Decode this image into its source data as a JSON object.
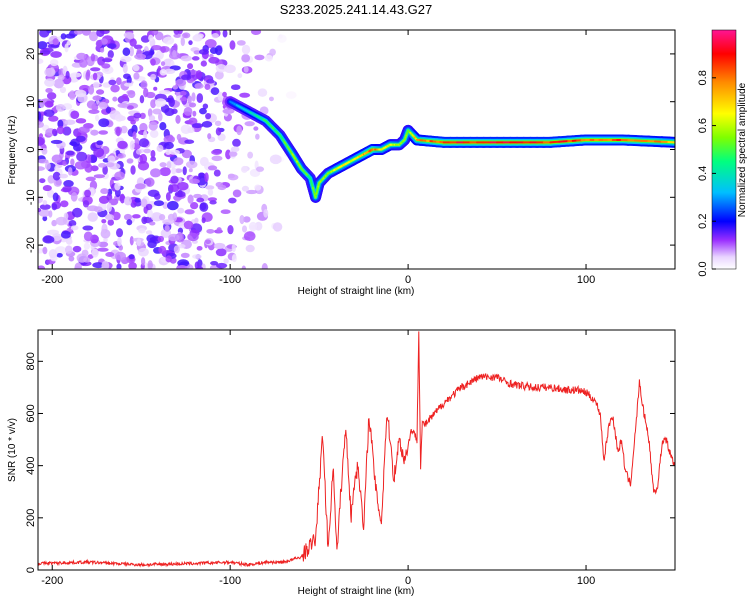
{
  "title": "S233.2025.241.14.43.G27",
  "chart_data": [
    {
      "type": "heatmap",
      "xlabel": "Height of straight line (km)",
      "ylabel": "Frequency (Hz)",
      "xlim": [
        -208,
        150
      ],
      "ylim": [
        -25,
        25
      ],
      "xticks": [
        -200,
        -100,
        0,
        100
      ],
      "yticks": [
        20,
        10,
        0,
        -10,
        -20
      ],
      "noise_region": [
        -208,
        -60
      ],
      "ridge": {
        "x": [
          -100,
          -90,
          -80,
          -72,
          -65,
          -60,
          -55,
          -52,
          -50,
          -45,
          -40,
          -35,
          -30,
          -25,
          -20,
          -15,
          -10,
          -5,
          -2,
          0,
          5,
          20,
          50,
          80,
          100,
          120,
          150
        ],
        "y": [
          10,
          8,
          6,
          3,
          -1,
          -4,
          -6,
          -10,
          -7,
          -5,
          -4,
          -3,
          -2,
          -1,
          0,
          0,
          1,
          1,
          2,
          4,
          2,
          1.5,
          1.5,
          1.5,
          2,
          2,
          1.5
        ],
        "amplitude": [
          0.3,
          0.4,
          0.5,
          0.5,
          0.6,
          0.6,
          0.5,
          0.6,
          0.6,
          0.6,
          0.7,
          0.7,
          0.7,
          0.8,
          0.9,
          0.7,
          0.7,
          0.6,
          0.6,
          0.6,
          0.8,
          0.95,
          0.95,
          0.95,
          0.9,
          0.9,
          0.8
        ]
      },
      "colorbar": {
        "label": "Normalized spectral amplitude",
        "ticks": [
          0.0,
          0.2,
          0.4,
          0.6,
          0.8
        ],
        "tick_labels": [
          "0.0",
          "0.2",
          "0.4",
          "0.6",
          "0.8"
        ],
        "range": [
          0,
          1
        ]
      }
    },
    {
      "type": "line",
      "xlabel": "Height of straight line (km)",
      "ylabel": "SNR (10 * v/v)",
      "xlim": [
        -208,
        150
      ],
      "ylim": [
        0,
        920
      ],
      "xticks": [
        -200,
        -100,
        0,
        100
      ],
      "yticks": [
        0,
        200,
        400,
        600,
        800
      ],
      "color": "#ee2222",
      "series": [
        {
          "name": "SNR",
          "x": [
            -208,
            -180,
            -150,
            -120,
            -100,
            -90,
            -80,
            -70,
            -60,
            -52,
            -48,
            -45,
            -42,
            -40,
            -38,
            -35,
            -32,
            -30,
            -28,
            -25,
            -22,
            -20,
            -18,
            -15,
            -12,
            -10,
            -8,
            -5,
            -2,
            0,
            2,
            5,
            6,
            7,
            8,
            10,
            15,
            20,
            25,
            30,
            35,
            40,
            45,
            50,
            55,
            60,
            70,
            80,
            90,
            95,
            100,
            105,
            108,
            110,
            113,
            115,
            118,
            120,
            122,
            125,
            128,
            130,
            132,
            135,
            138,
            140,
            143,
            145,
            148,
            150
          ],
          "y": [
            25,
            30,
            20,
            25,
            30,
            20,
            30,
            30,
            50,
            120,
            520,
            80,
            400,
            60,
            280,
            550,
            200,
            350,
            400,
            150,
            600,
            450,
            300,
            180,
            600,
            500,
            350,
            500,
            420,
            480,
            540,
            500,
            920,
            400,
            560,
            560,
            600,
            640,
            670,
            700,
            720,
            740,
            740,
            740,
            720,
            710,
            700,
            700,
            690,
            690,
            680,
            650,
            600,
            420,
            560,
            590,
            450,
            500,
            380,
            330,
            550,
            720,
            620,
            520,
            300,
            310,
            500,
            500,
            430,
            400
          ]
        }
      ]
    }
  ]
}
